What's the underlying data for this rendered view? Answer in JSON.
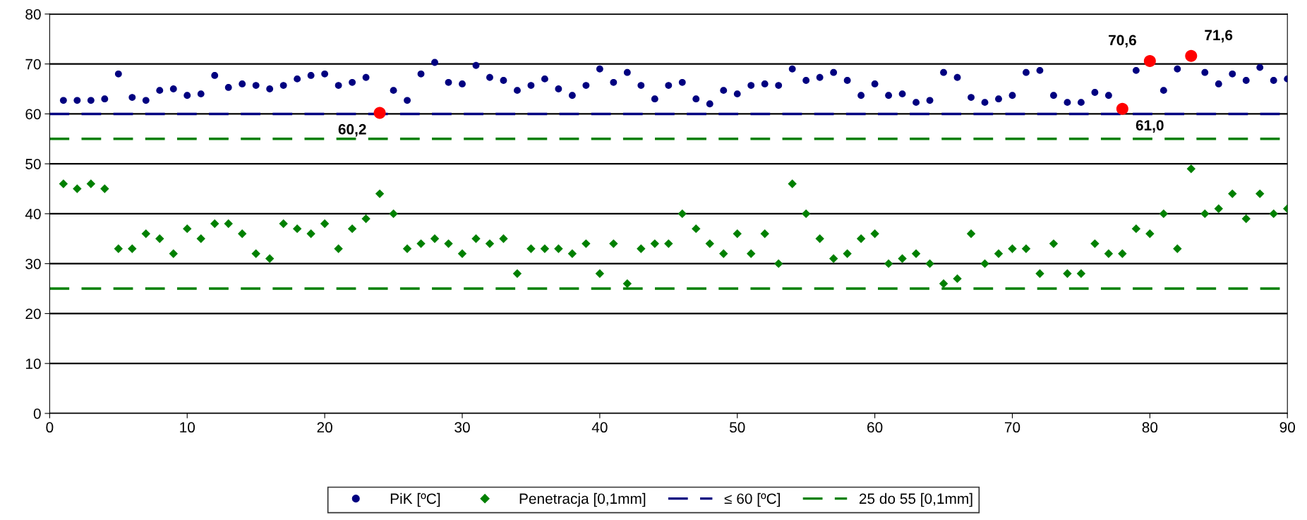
{
  "chart_data": {
    "type": "scatter",
    "x": [
      1,
      2,
      3,
      4,
      5,
      6,
      7,
      8,
      9,
      10,
      11,
      12,
      13,
      14,
      15,
      16,
      17,
      18,
      19,
      20,
      21,
      22,
      23,
      24,
      25,
      26,
      27,
      28,
      29,
      30,
      31,
      32,
      33,
      34,
      35,
      36,
      37,
      38,
      39,
      40,
      41,
      42,
      43,
      44,
      45,
      46,
      47,
      48,
      49,
      50,
      51,
      52,
      53,
      54,
      55,
      56,
      57,
      58,
      59,
      60,
      61,
      62,
      63,
      64,
      65,
      66,
      67,
      68,
      69,
      70,
      71,
      72,
      73,
      74,
      75,
      76,
      77,
      78,
      79,
      80,
      81,
      82,
      83,
      84,
      85,
      86,
      87,
      88,
      89,
      90
    ],
    "series": [
      {
        "name": "PiK [ºC]",
        "color": "#000080",
        "marker": "circle",
        "values": [
          62.7,
          62.7,
          62.7,
          63,
          68,
          63.3,
          62.7,
          64.7,
          65,
          63.7,
          64,
          67.7,
          65.3,
          66,
          65.7,
          65,
          65.7,
          67,
          67.7,
          68,
          65.7,
          66.3,
          67.3,
          null,
          64.7,
          62.7,
          68,
          70.3,
          66.3,
          66,
          69.7,
          67.3,
          66.7,
          64.7,
          65.7,
          67,
          65,
          63.7,
          65.7,
          69,
          66.3,
          68.3,
          65.7,
          63,
          65.7,
          66.3,
          63,
          62,
          64.7,
          64,
          65.7,
          66,
          65.7,
          69,
          66.7,
          67.3,
          68.3,
          66.7,
          63.7,
          66,
          63.7,
          64,
          62.3,
          62.7,
          68.3,
          67.3,
          63.3,
          62.3,
          63,
          63.7,
          68.3,
          68.7,
          63.7,
          62.3,
          62.3,
          64.3,
          63.7,
          null,
          68.7,
          null,
          64.7,
          69,
          null,
          68.3,
          66,
          68,
          66.7,
          69.3,
          66.7,
          67
        ]
      },
      {
        "name": "Penetracja [0,1mm]",
        "color": "#008000",
        "marker": "diamond",
        "values": [
          46,
          45,
          46,
          45,
          33,
          33,
          36,
          35,
          32,
          37,
          35,
          38,
          38,
          36,
          32,
          31,
          38,
          37,
          36,
          38,
          33,
          37,
          39,
          44,
          40,
          33,
          34,
          35,
          34,
          32,
          35,
          34,
          35,
          28,
          33,
          33,
          33,
          32,
          34,
          28,
          34,
          26,
          33,
          34,
          34,
          40,
          37,
          34,
          32,
          36,
          32,
          36,
          30,
          46,
          40,
          35,
          31,
          32,
          35,
          36,
          30,
          31,
          32,
          30,
          26,
          27,
          36,
          30,
          32,
          33,
          33,
          28,
          34,
          28,
          28,
          34,
          32,
          32,
          37,
          36,
          40,
          33,
          49,
          40,
          41,
          44,
          39,
          44,
          40,
          41
        ]
      },
      {
        "color": "#ff0000",
        "marker": "circle",
        "values": [
          null,
          null,
          null,
          null,
          null,
          null,
          null,
          null,
          null,
          null,
          null,
          null,
          null,
          null,
          null,
          null,
          null,
          null,
          null,
          null,
          null,
          null,
          null,
          60.2,
          null,
          null,
          null,
          null,
          null,
          null,
          null,
          null,
          null,
          null,
          null,
          null,
          null,
          null,
          null,
          null,
          null,
          null,
          null,
          null,
          null,
          null,
          null,
          null,
          null,
          null,
          null,
          null,
          null,
          null,
          null,
          null,
          null,
          null,
          null,
          null,
          null,
          null,
          null,
          null,
          null,
          null,
          null,
          null,
          null,
          null,
          null,
          null,
          null,
          null,
          null,
          null,
          null,
          61.0,
          null,
          70.6,
          null,
          null,
          71.6,
          null,
          null,
          null,
          null,
          null,
          null,
          null
        ]
      }
    ],
    "ref_lines": [
      {
        "axis": "y",
        "value": 60,
        "label": "≤ 60 [ºC]",
        "color": "#000080",
        "line_style": "dashed"
      },
      {
        "axis": "y",
        "value": 55,
        "label": "25 do 55 [0,1mm]",
        "color": "#008000",
        "line_style": "dashed"
      },
      {
        "axis": "y",
        "value": 25,
        "color": "#008000",
        "line_style": "dashed"
      }
    ],
    "annotations": [
      {
        "text": "60,2",
        "x": 24,
        "y": 60.2
      },
      {
        "text": "61,0",
        "x": 78,
        "y": 61.0
      },
      {
        "text": "70,6",
        "x": 80,
        "y": 70.6
      },
      {
        "text": "71,6",
        "x": 83,
        "y": 71.6
      }
    ],
    "xlim": [
      0,
      90
    ],
    "xticks": [
      0,
      10,
      20,
      30,
      40,
      50,
      60,
      70,
      80,
      90
    ],
    "ylim": [
      0,
      80
    ],
    "yticks": [
      0,
      10,
      20,
      30,
      40,
      50,
      60,
      70,
      80
    ],
    "grid": "y",
    "legend": "bottom"
  }
}
